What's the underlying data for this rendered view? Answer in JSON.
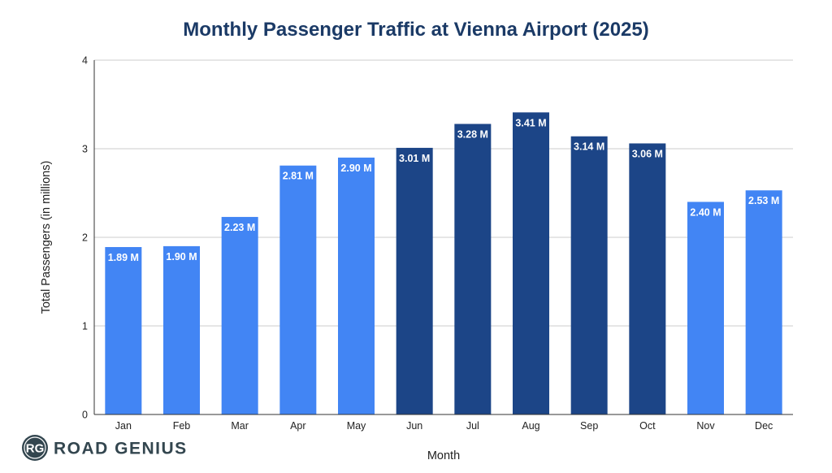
{
  "chart_data": {
    "type": "bar",
    "title": "Monthly Passenger Traffic at Vienna Airport (2025)",
    "xlabel": "Month",
    "ylabel": "Total Passengers (in millions)",
    "ylim": [
      0,
      4
    ],
    "yticks": [
      "0",
      "1",
      "2",
      "3",
      "4"
    ],
    "categories": [
      "Jan",
      "Feb",
      "Mar",
      "Apr",
      "May",
      "Jun",
      "Jul",
      "Aug",
      "Sep",
      "Oct",
      "Nov",
      "Dec"
    ],
    "values": [
      1.89,
      1.9,
      2.23,
      2.81,
      2.9,
      3.01,
      3.28,
      3.41,
      3.14,
      3.06,
      2.4,
      2.53
    ],
    "data_labels": [
      "1.89 M",
      "1.90 M",
      "2.23 M",
      "2.81 M",
      "2.90 M",
      "3.01 M",
      "3.28 M",
      "3.41 M",
      "3.14 M",
      "3.06 M",
      "2.40 M",
      "2.53 M"
    ],
    "grid": true,
    "colors": {
      "regular": "#4285f4",
      "peak": "#1c4587",
      "peak_months": [
        "Jun",
        "Jul",
        "Aug",
        "Sep",
        "Oct"
      ]
    }
  },
  "branding": {
    "logo_text": "ROAD GENIUS",
    "logo_mark": "RG"
  }
}
